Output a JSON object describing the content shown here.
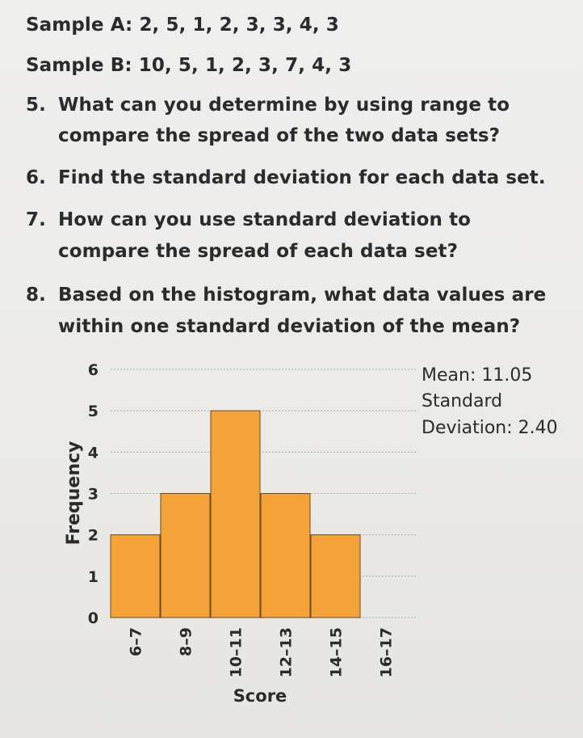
{
  "samples": {
    "a_label": "Sample A:",
    "a_values": "2, 5, 1, 2, 3, 3, 4, 3",
    "b_label": "Sample B:",
    "b_values": "10, 5, 1, 2, 3, 7, 4, 3"
  },
  "questions": [
    {
      "number": "5.",
      "line1": "What can you determine by using range to",
      "line2": "compare the spread of the two data sets?"
    },
    {
      "number": "6.",
      "line1": "Find the standard deviation for each data set.",
      "line2": ""
    },
    {
      "number": "7.",
      "line1": "How can you use standard deviation to",
      "line2": "compare the spread of each data set?"
    },
    {
      "number": "8.",
      "line1": "Based on the histogram, what data values are",
      "line2": "within one standard deviation of the mean?"
    }
  ],
  "stats": {
    "mean": "Mean: 11.05",
    "std_line1": "Standard",
    "std_line2": "Deviation: 2.40"
  },
  "chart_data": {
    "type": "bar",
    "categories": [
      "6–7",
      "8–9",
      "10–11",
      "12–13",
      "14–15",
      "16–17"
    ],
    "values": [
      2,
      3,
      5,
      3,
      2,
      0
    ],
    "xlabel": "Score",
    "ylabel": "Frequency",
    "ylim": [
      0,
      6
    ],
    "yticks": [
      "0",
      "1",
      "2",
      "3",
      "4",
      "5",
      "6"
    ],
    "grid": true,
    "bar_color": "#f4a23a"
  }
}
